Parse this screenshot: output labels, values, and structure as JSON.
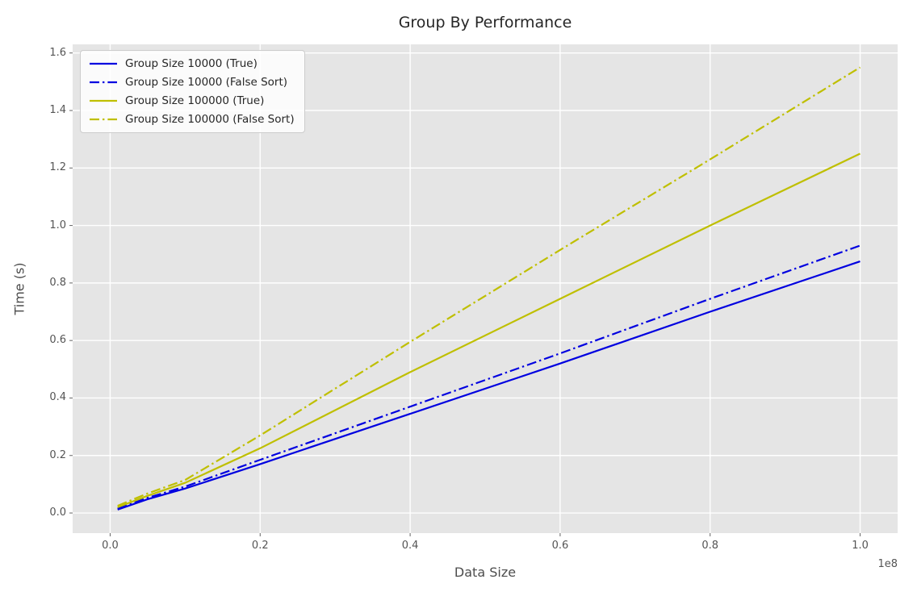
{
  "figure": {
    "title": "Group By Performance",
    "xlabel": "Data Size",
    "ylabel": "Time (s)",
    "axis_offset_label": "1e8"
  },
  "chart_data": {
    "type": "line",
    "title": "Group By Performance",
    "xlabel": "Data Size",
    "ylabel": "Time (s)",
    "x_offset_label": "1e8",
    "xlim": [
      -5000000,
      105000000
    ],
    "ylim": [
      -0.07,
      1.63
    ],
    "xticks": [
      0,
      20000000,
      40000000,
      60000000,
      80000000,
      100000000
    ],
    "xtick_labels": [
      "0.0",
      "0.2",
      "0.4",
      "0.6",
      "0.8",
      "1.0"
    ],
    "yticks": [
      0,
      0.2,
      0.4,
      0.6,
      0.8,
      1.0,
      1.2,
      1.4,
      1.6
    ],
    "ytick_labels": [
      "0.0",
      "0.2",
      "0.4",
      "0.6",
      "0.8",
      "1.0",
      "1.2",
      "1.4",
      "1.6"
    ],
    "grid": true,
    "legend_position": "upper left",
    "plot_background": "#e5e5e5",
    "grid_color": "#ffffff",
    "x": [
      1000000,
      5000000,
      10000000,
      20000000,
      40000000,
      60000000,
      80000000,
      100000000
    ],
    "series": [
      {
        "name": "Group Size 10000 (True)",
        "color": "#0000e0",
        "linestyle": "solid",
        "values": [
          0.012,
          0.048,
          0.085,
          0.17,
          0.345,
          0.52,
          0.7,
          0.875
        ]
      },
      {
        "name": "Group Size 10000 (False Sort)",
        "color": "#0000e0",
        "linestyle": "dashdot",
        "values": [
          0.015,
          0.053,
          0.092,
          0.185,
          0.37,
          0.555,
          0.745,
          0.93
        ]
      },
      {
        "name": "Group Size 100000 (True)",
        "color": "#bfbf00",
        "linestyle": "solid",
        "values": [
          0.02,
          0.06,
          0.105,
          0.225,
          0.49,
          0.745,
          1.0,
          1.25
        ]
      },
      {
        "name": "Group Size 100000 (False Sort)",
        "color": "#bfbf00",
        "linestyle": "dashdot",
        "values": [
          0.025,
          0.068,
          0.115,
          0.27,
          0.595,
          0.915,
          1.23,
          1.55
        ]
      }
    ]
  }
}
